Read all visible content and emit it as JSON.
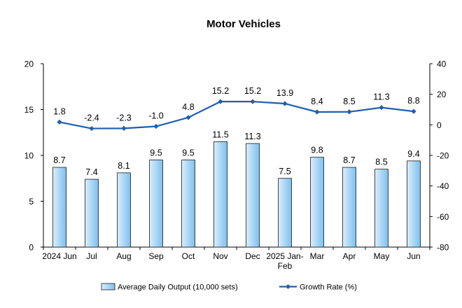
{
  "chart_data": {
    "type": "bar",
    "title": "Motor Vehicles",
    "categories": [
      "2024 Jun",
      "Jul",
      "Aug",
      "Sep",
      "Oct",
      "Nov",
      "Dec",
      "2025 Jan-Feb",
      "Mar",
      "Apr",
      "May",
      "Jun"
    ],
    "series": [
      {
        "name": "Average Daily Output (10,000 sets)",
        "type": "bar",
        "axis": "left",
        "values": [
          8.7,
          7.4,
          8.1,
          9.5,
          9.5,
          11.5,
          11.3,
          7.5,
          9.8,
          8.7,
          8.5,
          9.4
        ],
        "labels": [
          "8.7",
          "7.4",
          "8.1",
          "9.5",
          "9.5",
          "11.5",
          "11.3",
          "7.5",
          "9.8",
          "8.7",
          "8.5",
          "9.4"
        ]
      },
      {
        "name": "Growth Rate (%)",
        "type": "line",
        "axis": "right",
        "values": [
          1.8,
          -2.4,
          -2.3,
          -1.0,
          4.8,
          15.2,
          15.2,
          13.9,
          8.4,
          8.5,
          11.3,
          8.8
        ],
        "labels": [
          "1.8",
          "-2.4",
          "-2.3",
          "-1.0",
          "4.8",
          "15.2",
          "15.2",
          "13.9",
          "8.4",
          "8.5",
          "11.3",
          "8.8"
        ]
      }
    ],
    "y_left": {
      "min": 0,
      "max": 20,
      "ticks": [
        "0",
        "5",
        "10",
        "15",
        "20"
      ]
    },
    "y_right": {
      "min": -80,
      "max": 40,
      "ticks": [
        "-80",
        "-60",
        "-40",
        "-20",
        "0",
        "20",
        "40"
      ]
    },
    "grid": false,
    "legend_position": "bottom",
    "colors": {
      "bar_fill_light": "#dbeefb",
      "bar_fill_dark": "#7cc0ee",
      "bar_stroke": "#1a1a1a",
      "line": "#1f5fae",
      "axis": "#000000"
    }
  }
}
